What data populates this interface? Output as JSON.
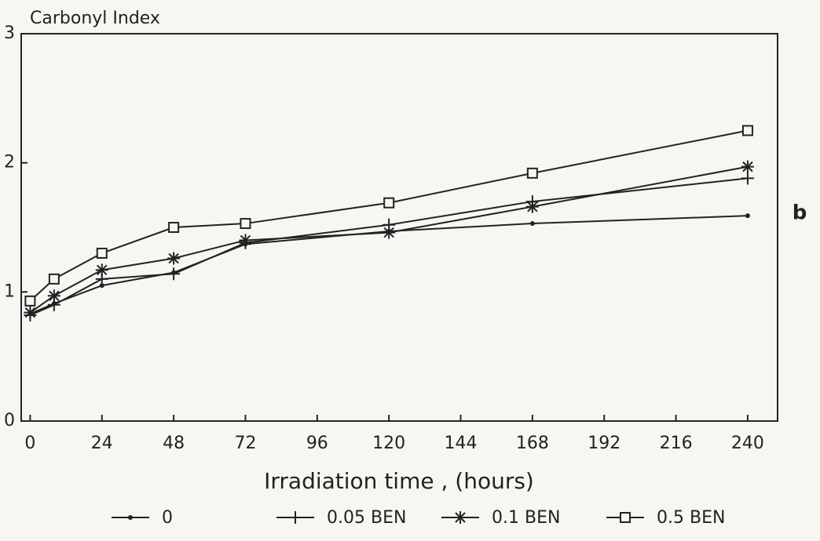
{
  "chart_data": {
    "type": "line",
    "y_label": "Carbonyl Index",
    "x_label": "Irradiation time , (hours)",
    "panel_label": "b",
    "x": [
      0,
      8,
      24,
      48,
      72,
      120,
      168,
      240
    ],
    "series": [
      {
        "name": "0",
        "color": "#222222",
        "marker": "dot",
        "values": [
          0.83,
          0.91,
          1.05,
          1.15,
          1.37,
          1.47,
          1.53,
          1.59
        ]
      },
      {
        "name": "0.05 BEN",
        "color": "#222222",
        "marker": "plus",
        "values": [
          0.82,
          0.9,
          1.1,
          1.14,
          1.38,
          1.52,
          1.7,
          1.88
        ]
      },
      {
        "name": "0.1 BEN",
        "color": "#222222",
        "marker": "asterisk",
        "values": [
          0.84,
          0.97,
          1.17,
          1.26,
          1.4,
          1.46,
          1.66,
          1.97
        ]
      },
      {
        "name": "0.5 BEN",
        "color": "#222222",
        "marker": "square",
        "values": [
          0.93,
          1.1,
          1.3,
          1.5,
          1.53,
          1.69,
          1.92,
          2.25
        ]
      }
    ],
    "xlim": [
      -3,
      250
    ],
    "ylim": [
      0,
      3
    ],
    "xticks": [
      0,
      24,
      48,
      72,
      96,
      120,
      144,
      168,
      192,
      216,
      240
    ],
    "yticks": [
      0,
      1,
      2,
      3
    ],
    "grid": false,
    "legend": "bottom"
  }
}
